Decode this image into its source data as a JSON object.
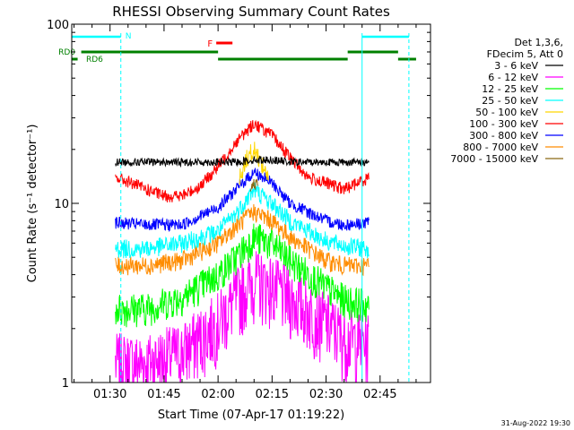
{
  "chart_data": {
    "type": "line",
    "title": "RHESSI Observing Summary Count Rates",
    "xlabel": "Start Time (07-Apr-17 01:19:22)",
    "ylabel": "Count Rate (s⁻¹ detector⁻¹)",
    "y_scale": "log",
    "x_range": [
      "01:19:22",
      "02:59:00"
    ],
    "ylim": [
      1,
      100
    ],
    "x_ticks": [
      "01:30",
      "01:45",
      "02:00",
      "02:15",
      "02:30",
      "02:45"
    ],
    "y_ticks": [
      "1",
      "10",
      "100"
    ],
    "grid": false,
    "legend_placement": "right",
    "legend_header": [
      "Det 1,3,6,",
      "FDecim 5, Att 0"
    ],
    "footer_date": "31-Aug-2022 19:30",
    "series": [
      {
        "name": "3 - 6 keV",
        "color": "#000000",
        "x": [
          "01:31:30",
          "01:40",
          "01:50",
          "02:00",
          "02:05",
          "02:10",
          "02:15",
          "02:20",
          "02:30",
          "02:35",
          "02:42"
        ],
        "values": [
          17,
          17,
          17,
          17,
          17,
          17.5,
          17.5,
          17,
          17,
          17,
          17
        ]
      },
      {
        "name": "6 - 12 keV",
        "color": "#ff00ff",
        "x": [
          "01:31:30",
          "01:40",
          "01:50",
          "02:00",
          "02:05",
          "02:10",
          "02:15",
          "02:20",
          "02:30",
          "02:35",
          "02:42"
        ],
        "values": [
          1.3,
          1.3,
          1.5,
          2.2,
          3.0,
          3.8,
          3.5,
          3.0,
          2.2,
          1.8,
          1.7
        ]
      },
      {
        "name": "12 - 25 keV",
        "color": "#00ff00",
        "x": [
          "01:31:30",
          "01:40",
          "01:50",
          "02:00",
          "02:05",
          "02:10",
          "02:15",
          "02:20",
          "02:30",
          "02:35",
          "02:42"
        ],
        "values": [
          2.6,
          2.6,
          3.0,
          4.0,
          5.0,
          6.5,
          6.0,
          4.8,
          3.4,
          2.9,
          2.7
        ]
      },
      {
        "name": "25 - 50 keV",
        "color": "#00ffff",
        "x": [
          "01:31:30",
          "01:40",
          "01:50",
          "02:00",
          "02:05",
          "02:10",
          "02:15",
          "02:20",
          "02:30",
          "02:35",
          "02:42"
        ],
        "values": [
          5.6,
          5.6,
          6.0,
          7.0,
          8.8,
          12,
          10,
          8.0,
          6.2,
          5.8,
          5.6
        ]
      },
      {
        "name": "50 - 100 keV",
        "color": "#ffd700",
        "x": [
          "02:06",
          "02:08",
          "02:10",
          "02:12",
          "02:14"
        ],
        "values": [
          14,
          18,
          20,
          17,
          14
        ]
      },
      {
        "name": "100 - 300 keV",
        "color": "#ff0000",
        "x": [
          "01:31:30",
          "01:36",
          "01:40",
          "01:45",
          "01:50",
          "01:55",
          "02:00",
          "02:05",
          "02:10",
          "02:15",
          "02:20",
          "02:25",
          "02:30",
          "02:35",
          "02:42"
        ],
        "values": [
          14,
          13,
          12,
          11,
          11,
          12.5,
          16,
          22,
          28,
          24,
          18,
          14,
          13,
          12,
          14
        ]
      },
      {
        "name": "300 - 800 keV",
        "color": "#0000ff",
        "x": [
          "01:31:30",
          "01:40",
          "01:50",
          "02:00",
          "02:05",
          "02:10",
          "02:15",
          "02:20",
          "02:30",
          "02:35",
          "02:42"
        ],
        "values": [
          7.8,
          7.6,
          7.6,
          9.5,
          12,
          15,
          13,
          10,
          8,
          7.6,
          7.8
        ]
      },
      {
        "name": "800 - 7000 keV",
        "color": "#ff8c00",
        "x": [
          "01:31:30",
          "01:40",
          "01:50",
          "02:00",
          "02:05",
          "02:10",
          "02:15",
          "02:20",
          "02:30",
          "02:35",
          "02:42"
        ],
        "values": [
          4.5,
          4.5,
          4.8,
          6.0,
          7.5,
          9.0,
          8.0,
          6.5,
          4.8,
          4.5,
          4.5
        ]
      },
      {
        "name": "7000 - 15000 keV",
        "color": "#8b6914",
        "x": [
          "02:09",
          "02:11"
        ],
        "values": [
          12,
          13
        ]
      }
    ],
    "annotations": {
      "N": {
        "label": "N",
        "color": "#00ffff",
        "ranges": [
          [
            "01:19:22",
            "01:33"
          ],
          [
            "02:40",
            "02:53"
          ]
        ]
      },
      "F": {
        "label": "F",
        "color": "#ff0000",
        "ranges": [
          [
            "01:59:30",
            "02:04"
          ]
        ]
      },
      "RD0": {
        "label": "RD0",
        "color": "#008000",
        "ranges": [
          [
            "01:22",
            "02:00"
          ],
          [
            "02:36",
            "02:50"
          ]
        ]
      },
      "RD6": {
        "label": "RD6",
        "color": "#008000",
        "ranges": [
          [
            "01:19:22",
            "01:21"
          ],
          [
            "02:00",
            "02:36"
          ],
          [
            "02:50",
            "02:55"
          ]
        ]
      }
    }
  }
}
